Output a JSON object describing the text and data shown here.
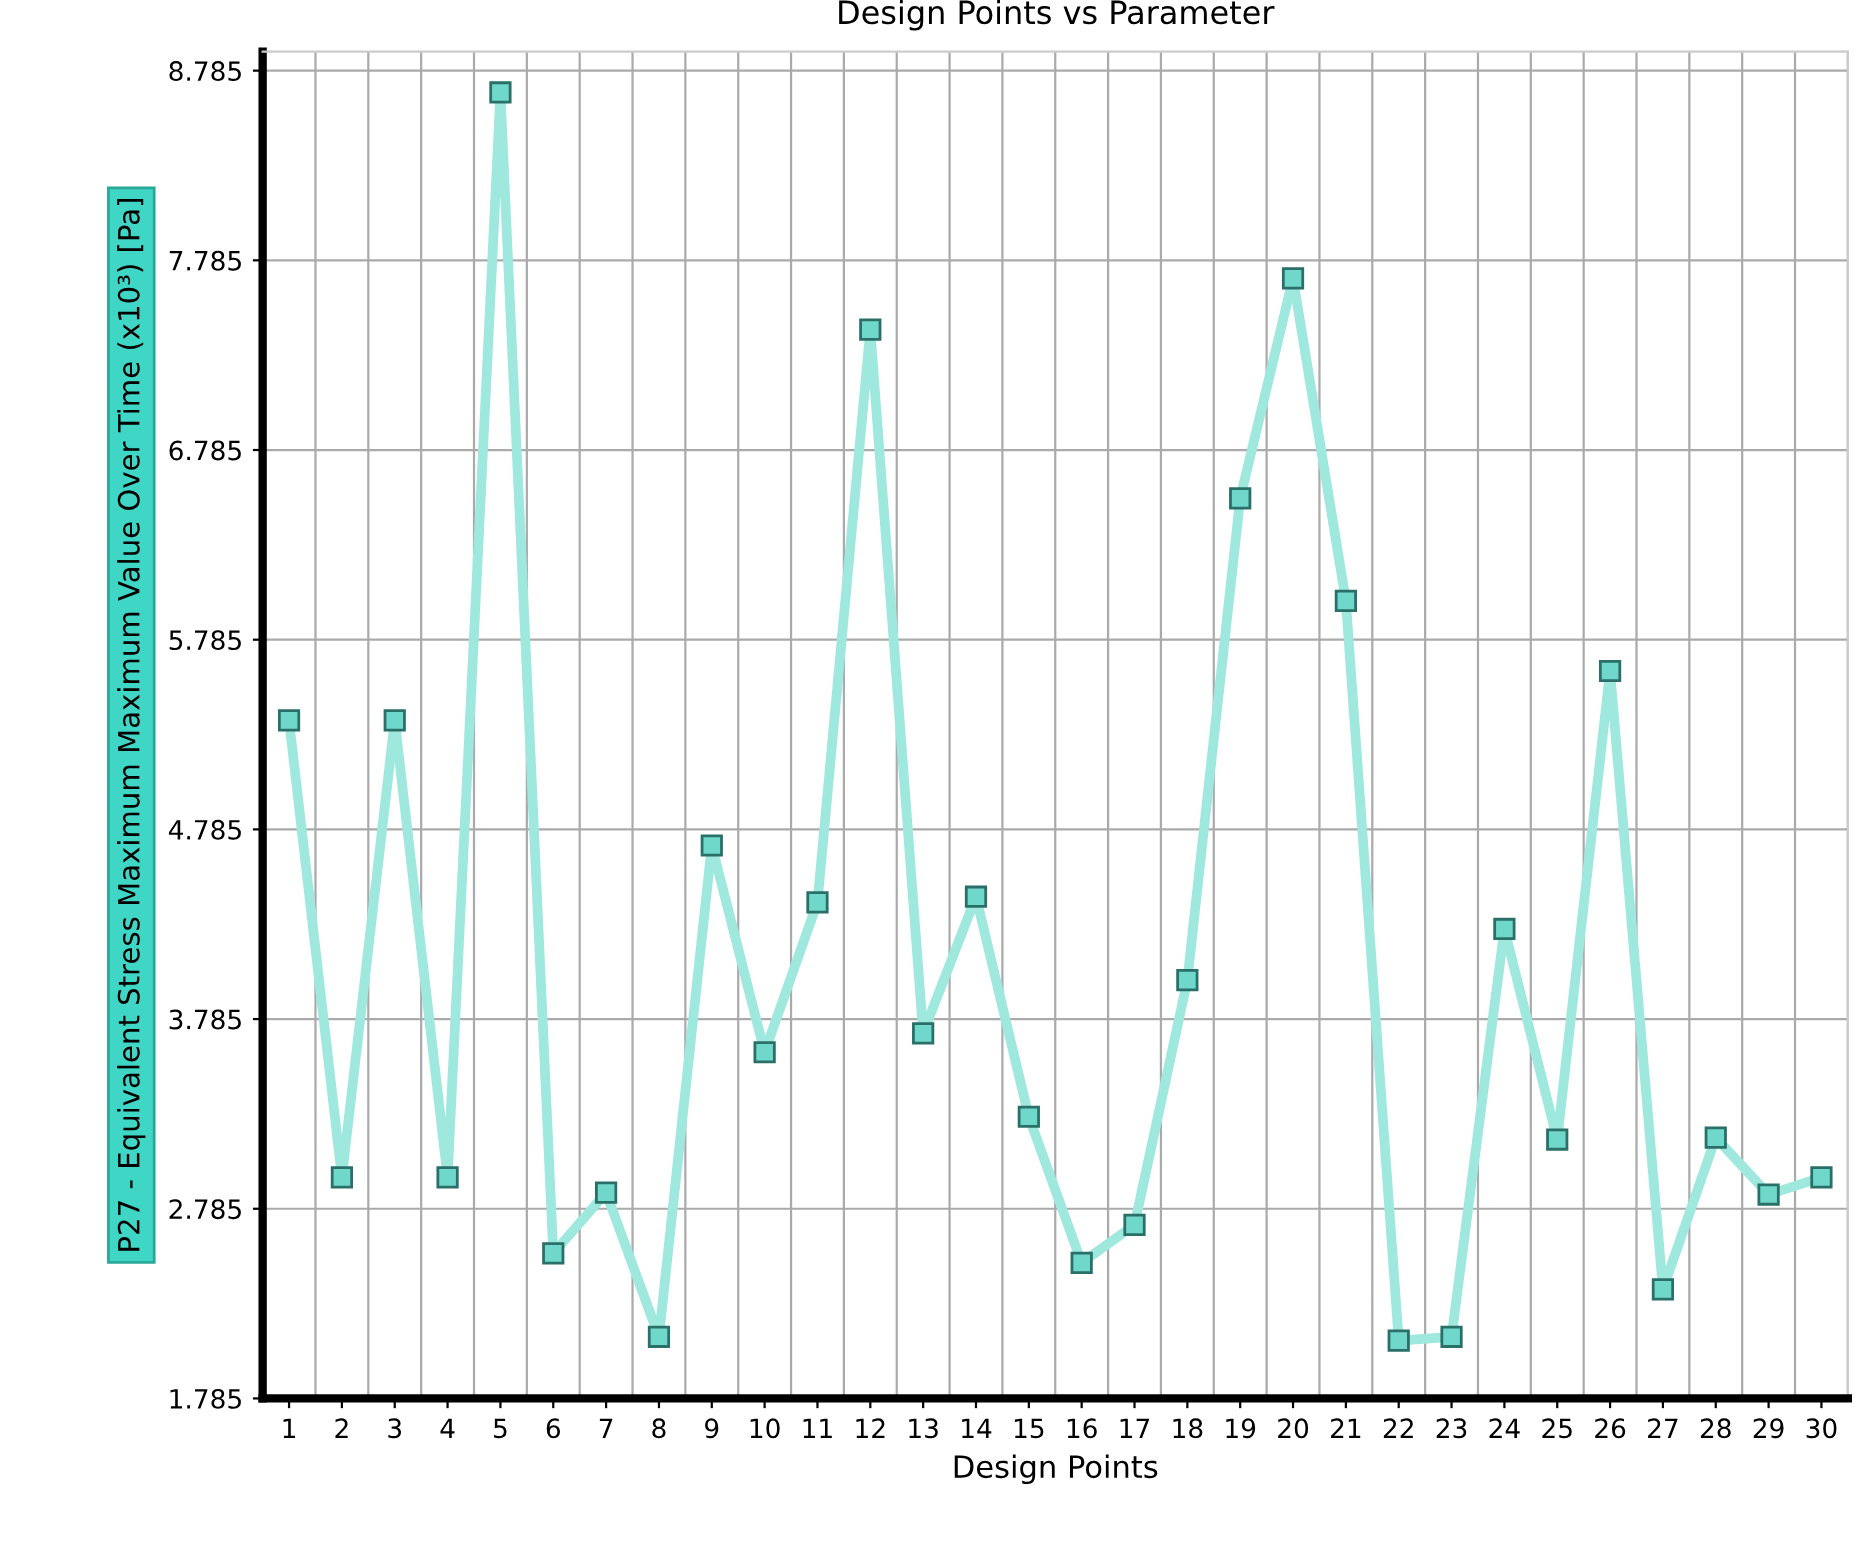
{
  "chart_data": {
    "type": "line",
    "title": "Design Points vs Parameter",
    "xlabel": "Design Points",
    "ylabel": "P27 - Equivalent Stress Maximum Maximum Value Over Time (x10³) [Pa]",
    "categories": [
      "1",
      "2",
      "3",
      "4",
      "5",
      "6",
      "7",
      "8",
      "9",
      "10",
      "11",
      "12",
      "13",
      "14",
      "15",
      "16",
      "17",
      "18",
      "19",
      "20",
      "21",
      "22",
      "23",
      "24",
      "25",
      "26",
      "27",
      "28",
      "29",
      "30"
    ],
    "series": [
      {
        "color": "#9ee8de",
        "values": [
          5.36,
          2.95,
          5.36,
          2.95,
          8.67,
          2.55,
          2.87,
          2.11,
          4.7,
          3.61,
          4.4,
          7.42,
          3.71,
          4.43,
          3.27,
          2.5,
          2.7,
          3.99,
          6.53,
          7.69,
          5.99,
          2.09,
          2.11,
          4.26,
          3.15,
          5.62,
          2.36,
          3.16,
          2.86,
          2.95
        ]
      }
    ],
    "ylim": [
      1.785,
      8.885
    ],
    "yticks": [
      1.785,
      2.785,
      3.785,
      4.785,
      5.785,
      6.785,
      7.785,
      8.785
    ],
    "grid": true,
    "marker": "square",
    "line_style": "solid"
  }
}
